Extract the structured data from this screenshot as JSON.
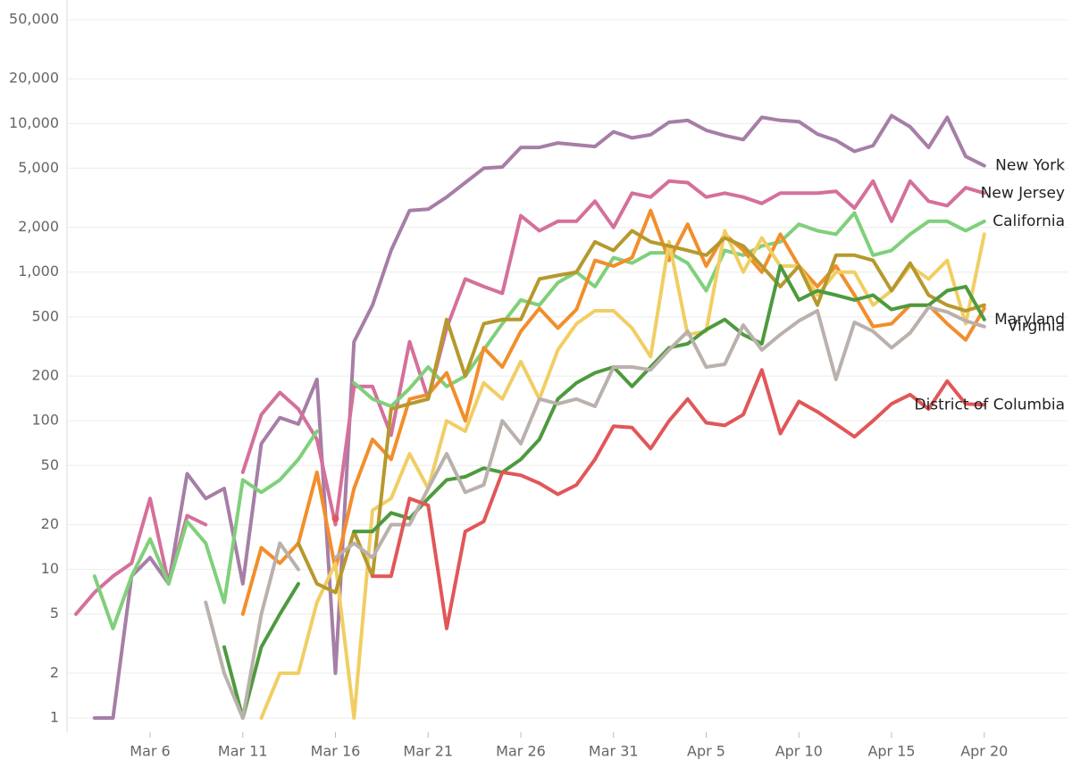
{
  "chart_data": {
    "type": "line",
    "log_scale": true,
    "grid": true,
    "categories": [
      null,
      null,
      null,
      null,
      "Mar 6",
      null,
      null,
      null,
      null,
      "Mar 11",
      null,
      null,
      null,
      null,
      "Mar 16",
      null,
      null,
      null,
      null,
      "Mar 21",
      null,
      null,
      null,
      null,
      "Mar 26",
      null,
      null,
      null,
      null,
      "Mar 31",
      null,
      null,
      null,
      null,
      "Apr 5",
      null,
      null,
      null,
      null,
      "Apr 10",
      null,
      null,
      null,
      null,
      "Apr 15",
      null,
      null,
      null,
      null,
      "Apr 20"
    ],
    "ylim": [
      1,
      50000
    ],
    "yticks": [
      1,
      2,
      5,
      10,
      20,
      50,
      100,
      200,
      500,
      {
        "value": 1000,
        "label": "1,000"
      },
      {
        "value": 2000,
        "label": "2,000"
      },
      {
        "value": 5000,
        "label": "5,000"
      },
      {
        "value": 10000,
        "label": "10,000"
      },
      {
        "value": 20000,
        "label": "20,000"
      },
      {
        "value": 50000,
        "label": "50,000"
      }
    ],
    "series": [
      {
        "name": "New York",
        "color": "#a67ea6",
        "values": [
          null,
          1,
          1,
          9,
          12,
          8,
          44,
          30,
          35,
          8,
          70,
          105,
          95,
          190,
          2,
          340,
          600,
          1400,
          2600,
          2650,
          3200,
          4000,
          5000,
          5100,
          6900,
          6900,
          7400,
          7200,
          7000,
          8800,
          8000,
          8400,
          10200,
          10500,
          9000,
          8300,
          7800,
          11000,
          10500,
          10300,
          8500,
          7700,
          6500,
          7100,
          11300,
          9500,
          6900,
          11000,
          6000,
          5200
        ]
      },
      {
        "name": "New Jersey",
        "color": "#d4709b",
        "values": [
          5,
          7,
          9,
          11,
          30,
          8,
          23,
          20,
          null,
          45,
          110,
          155,
          120,
          75,
          20,
          170,
          170,
          80,
          340,
          140,
          420,
          900,
          800,
          720,
          2400,
          1900,
          2200,
          2200,
          3000,
          2000,
          3400,
          3200,
          4100,
          4000,
          3200,
          3400,
          3200,
          2900,
          3400,
          3400,
          3400,
          3500,
          2700,
          4100,
          2200,
          4100,
          3000,
          2800,
          3700,
          3400
        ]
      },
      {
        "name": "California",
        "color": "#7fd07a",
        "values": [
          null,
          9,
          4,
          9,
          16,
          8,
          21,
          15,
          6,
          40,
          33,
          40,
          55,
          85,
          null,
          180,
          140,
          125,
          165,
          230,
          170,
          200,
          300,
          450,
          650,
          600,
          850,
          1000,
          800,
          1250,
          1150,
          1350,
          1350,
          1150,
          750,
          1400,
          1300,
          1500,
          1600,
          2100,
          1900,
          1800,
          2500,
          1300,
          1400,
          1800,
          2200,
          2200,
          1900,
          2200
        ]
      },
      {
        "color": "#f28e2b",
        "values": [
          null,
          null,
          null,
          null,
          null,
          null,
          null,
          null,
          null,
          5,
          14,
          11,
          15,
          45,
          10,
          35,
          75,
          55,
          140,
          150,
          210,
          100,
          310,
          230,
          400,
          570,
          420,
          560,
          1200,
          1100,
          1250,
          2600,
          1200,
          2100,
          1100,
          1800,
          1400,
          1000,
          1800,
          1100,
          800,
          1100,
          700,
          430,
          450,
          600,
          600,
          450,
          350,
          570
        ]
      },
      {
        "color": "#f1ce63",
        "values": [
          null,
          null,
          null,
          null,
          null,
          null,
          null,
          null,
          null,
          null,
          1,
          2,
          2,
          6,
          11,
          1,
          25,
          30,
          60,
          35,
          100,
          85,
          180,
          140,
          250,
          140,
          300,
          450,
          550,
          550,
          420,
          270,
          1600,
          380,
          400,
          1900,
          1000,
          1700,
          1100,
          1100,
          700,
          1000,
          1000,
          600,
          750,
          1100,
          900,
          1200,
          450,
          1800
        ]
      },
      {
        "color": "#b6992d",
        "values": [
          null,
          null,
          null,
          null,
          null,
          null,
          null,
          null,
          null,
          null,
          null,
          null,
          15,
          8,
          7,
          18,
          9,
          120,
          130,
          140,
          480,
          200,
          450,
          480,
          480,
          900,
          950,
          1000,
          1600,
          1400,
          1900,
          1600,
          1500,
          1400,
          1300,
          1700,
          1500,
          1100,
          800,
          1100,
          600,
          1300,
          1300,
          1200,
          750,
          1150,
          700,
          600,
          550,
          600
        ]
      },
      {
        "name": "Maryland",
        "color": "#4e9a3e",
        "values": [
          null,
          null,
          null,
          null,
          null,
          null,
          null,
          null,
          3,
          1,
          3,
          5,
          8,
          null,
          null,
          18,
          18,
          24,
          22,
          30,
          40,
          42,
          48,
          45,
          55,
          75,
          140,
          180,
          210,
          230,
          170,
          230,
          310,
          330,
          410,
          480,
          380,
          330,
          1100,
          650,
          750,
          700,
          650,
          700,
          560,
          600,
          600,
          750,
          800,
          480
        ]
      },
      {
        "name": "Virginia",
        "color": "#bab0ac",
        "values": [
          null,
          null,
          null,
          null,
          null,
          null,
          null,
          6,
          2,
          1,
          5,
          15,
          10,
          null,
          12,
          15,
          12,
          20,
          20,
          35,
          60,
          33,
          37,
          100,
          70,
          140,
          130,
          140,
          125,
          230,
          230,
          220,
          300,
          400,
          230,
          240,
          440,
          300,
          380,
          470,
          550,
          190,
          460,
          400,
          310,
          390,
          580,
          540,
          470,
          430
        ]
      },
      {
        "name": "District of Columbia",
        "color": "#e15759",
        "values": [
          null,
          null,
          null,
          null,
          null,
          null,
          null,
          null,
          null,
          null,
          null,
          null,
          null,
          null,
          22,
          null,
          9,
          9,
          30,
          27,
          4,
          18,
          21,
          45,
          43,
          38,
          32,
          37,
          55,
          92,
          90,
          65,
          100,
          140,
          97,
          93,
          110,
          220,
          82,
          135,
          115,
          95,
          78,
          100,
          130,
          150,
          120,
          185,
          130,
          128
        ]
      }
    ]
  }
}
